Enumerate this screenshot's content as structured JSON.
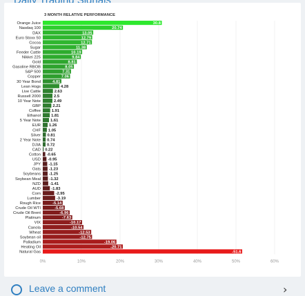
{
  "page": {
    "title": "Daily Trading Signals",
    "comment_link": "Leave a comment",
    "chevron_glyph": "›"
  },
  "colors": {
    "positive_max": "#2ee82e",
    "positive_min": "#2f4f2f",
    "negative_min": "#3a1f1f",
    "negative_max": "#e81a1a",
    "grid": "#e6e6e6",
    "link": "#2f7fc1"
  },
  "icons": {
    "comment": "comment-circle-icon",
    "chevron": "chevron-right-icon"
  },
  "chart_data": {
    "type": "bar",
    "orientation": "horizontal",
    "title": "3 MONTH RELATIVE PERFORMANCE",
    "xlim": [
      0,
      60
    ],
    "xticks": [
      "0%",
      "10%",
      "20%",
      "30%",
      "40%",
      "50%",
      "60%"
    ],
    "grid": true,
    "categories": [
      "Orange Juice",
      "Nasdaq 100",
      "DAX",
      "Euro Stoxx 50",
      "Cocoa",
      "Sugar",
      "Feeder Cattle",
      "Nikkei 225",
      "Gold",
      "Gasoline RBOB",
      "S&P 500",
      "Copper",
      "30 Year Bond",
      "Lean Hogs",
      "Live Cattle",
      "Russell 2000",
      "10 Year Note",
      "GBP",
      "Coffee",
      "Ethanol",
      "5 Year Note",
      "EUR",
      "CHF",
      "Silver",
      "2 Year Note",
      "DJIA",
      "CAD",
      "Cotton",
      "USD",
      "JPY",
      "Oats",
      "Soybeans",
      "Soybean Meal",
      "NZD",
      "AUD",
      "Corn",
      "Lumber",
      "Rough Rice",
      "Crude Oil WTI",
      "Crude Oil Brent",
      "Platinum",
      "VIX",
      "Canola",
      "Wheat",
      "Soybean oil",
      "Palladium",
      "Heating Oil",
      "Natural Gas"
    ],
    "values": [
      30.8,
      20.74,
      13.05,
      12.79,
      12.71,
      11.38,
      10.19,
      9.84,
      8.81,
      8.05,
      7.31,
      7.06,
      4.81,
      4.28,
      2.63,
      2.5,
      2.49,
      2.21,
      1.91,
      1.81,
      1.61,
      1.26,
      1.05,
      0.81,
      0.74,
      0.72,
      0.22,
      -0.65,
      -0.95,
      -1.15,
      -1.23,
      -1.25,
      -1.32,
      -1.41,
      -1.83,
      -2.95,
      -3.19,
      -5.14,
      -5.68,
      -6.96,
      -7.63,
      -10.17,
      -10.54,
      -12.53,
      -12.75,
      -19.06,
      -20.71,
      -51.6
    ],
    "data_labels": [
      "30.8",
      "20.74",
      "13.05",
      "12.79",
      "12.71",
      "11.38",
      "10.19",
      "9.84",
      "8.81",
      "8.05",
      "7.31",
      "7.06",
      "4.81",
      "4.28",
      "2.63",
      "2.5",
      "2.49",
      "2.21",
      "1.91",
      "1.81",
      "1.61",
      "1.26",
      "1.05",
      "0.81",
      "0.74",
      "0.72",
      "0.22",
      "-0.65",
      "-0.95",
      "-1.15",
      "-1.23",
      "-1.25",
      "-1.32",
      "-1.41",
      "-1.83",
      "-2.95",
      "-3.19",
      "-5.14",
      "-5.68",
      "-6.96",
      "-7.63",
      "-10.17",
      "-10.54",
      "-12.53",
      "-12.75",
      "-19.06",
      "-20.71",
      "-51.6"
    ]
  }
}
